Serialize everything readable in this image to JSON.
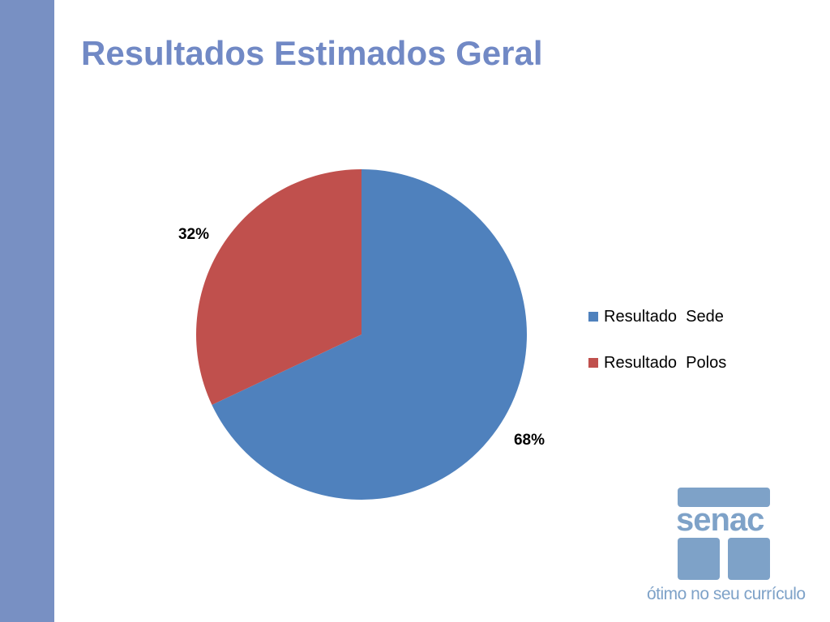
{
  "slide": {
    "title": "Resultados Estimados Geral"
  },
  "chart_data": {
    "type": "pie",
    "title": "",
    "categories": [
      "Resultado  Sede",
      "Resultado  Polos"
    ],
    "values": [
      68,
      32
    ],
    "value_labels": [
      "68%",
      "32%"
    ],
    "unit": "%",
    "colors": [
      "#4f81bd",
      "#c0504d"
    ],
    "legend_position": "right"
  },
  "logo": {
    "brand": "senac",
    "tagline": "ótimo no seu currículo",
    "color": "#7ea2c8"
  },
  "theme": {
    "accent_bar": "#7890c3",
    "title_color": "#7189c5"
  }
}
